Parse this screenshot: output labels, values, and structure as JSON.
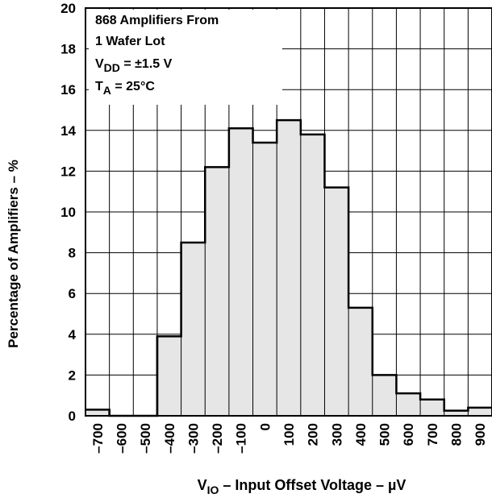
{
  "chart_data": {
    "type": "bar",
    "histogram": true,
    "xlabel": {
      "main": "V",
      "sub": "IO",
      "rest": " – Input Offset Voltage – µV"
    },
    "ylabel": "Percentage of Amplifiers – %",
    "annotation": [
      {
        "text": "868 Amplifiers From"
      },
      {
        "text": "1 Wafer Lot"
      },
      {
        "main": "V",
        "sub": "DD",
        "rest": " = ±1.5 V"
      },
      {
        "main": "T",
        "sub": "A",
        "rest": " = 25°C"
      }
    ],
    "xlim": [
      -750,
      950
    ],
    "ylim": [
      0,
      20
    ],
    "yticks": [
      0,
      2,
      4,
      6,
      8,
      10,
      12,
      14,
      16,
      18,
      20
    ],
    "ytick_labels": [
      "0",
      "2",
      "4",
      "6",
      "8",
      "10",
      "12",
      "14",
      "16",
      "18",
      "20"
    ],
    "xticks": [
      -700,
      -600,
      -500,
      -400,
      -300,
      -200,
      -100,
      0,
      100,
      200,
      300,
      400,
      500,
      600,
      700,
      800,
      900
    ],
    "xtick_labels": [
      "–700",
      "–600",
      "–500",
      "–400",
      "–300",
      "–200",
      "–100",
      "0",
      "100",
      "200",
      "300",
      "400",
      "500",
      "600",
      "700",
      "800",
      "900"
    ],
    "bin_edges": [
      -750,
      -650,
      -550,
      -450,
      -350,
      -250,
      -150,
      -50,
      50,
      150,
      250,
      350,
      450,
      550,
      650,
      750,
      850,
      950
    ],
    "values": [
      0.3,
      0,
      0,
      3.9,
      8.5,
      12.2,
      14.1,
      13.4,
      14.5,
      13.8,
      11.2,
      5.3,
      2.0,
      1.1,
      0.8,
      0.25,
      0.4
    ],
    "grid": true,
    "bar_fill": "#e6e6e6",
    "bar_edge": "#000000"
  }
}
